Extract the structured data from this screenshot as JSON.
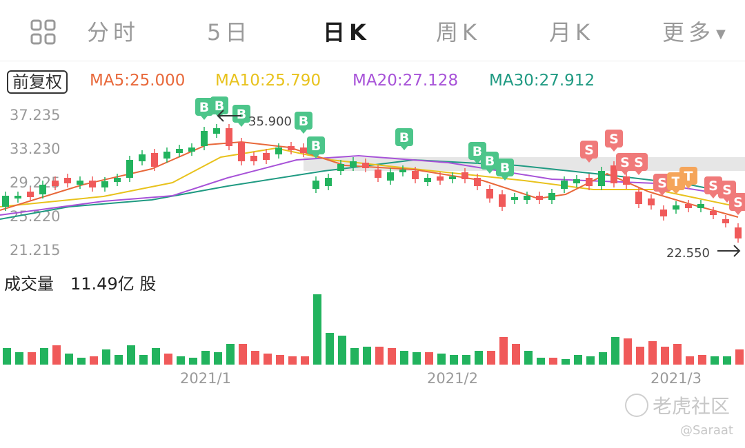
{
  "tabs": [
    {
      "label": "分时",
      "active": false
    },
    {
      "label": "5日",
      "active": false
    },
    {
      "label": "日K",
      "active": true
    },
    {
      "label": "周K",
      "active": false
    },
    {
      "label": "月K",
      "active": false
    },
    {
      "label": "更多",
      "active": false
    }
  ],
  "more_arrow": "▼",
  "adjust_button": "前复权",
  "ma": [
    {
      "label": "MA5:25.000",
      "color": "#e8683a"
    },
    {
      "label": "MA10:25.790",
      "color": "#e8c21c"
    },
    {
      "label": "MA20:27.128",
      "color": "#a752d8"
    },
    {
      "label": "MA30:27.912",
      "color": "#1f9a82"
    }
  ],
  "price_axis": [
    "37.235",
    "33.230",
    "29.225",
    "25.220",
    "21.215"
  ],
  "high_marker": "35.900",
  "low_marker": "22.550",
  "volume": {
    "label": "成交量",
    "value": "11.49亿 股"
  },
  "date_labels": [
    "2021/1",
    "2021/2",
    "2021/3"
  ],
  "colors": {
    "up": "#f05a5a",
    "down": "#22b35e",
    "buy": "#4cc58a",
    "sell": "#f07a7a",
    "t": "#f5a55a"
  },
  "watermark": "老虎社区",
  "credit": "@Saraat",
  "chart_data": {
    "type": "candlestick",
    "ylim": [
      21.215,
      37.235
    ],
    "ma_values": {
      "MA5": 25.0,
      "MA10": 25.79,
      "MA20": 27.128,
      "MA30": 27.912
    },
    "high": 35.9,
    "low": 22.55,
    "x_labels": [
      "2021/1",
      "2021/2",
      "2021/3"
    ],
    "volume_last": "11.49亿"
  }
}
